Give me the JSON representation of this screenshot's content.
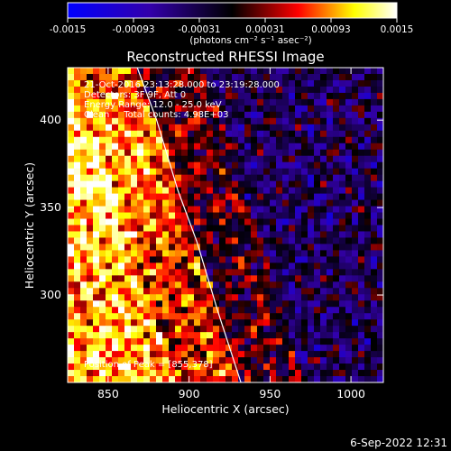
{
  "chart_data": {
    "type": "heatmap",
    "title": "Reconstructed RHESSI Image",
    "xlabel": "Heliocentric X (arcsec)",
    "ylabel": "Heliocentric Y (arcsec)",
    "x_range": [
      825,
      1020
    ],
    "y_range": [
      250,
      430
    ],
    "x_ticks": [
      850,
      900,
      950,
      1000
    ],
    "y_ticks": [
      300,
      350,
      400
    ],
    "colorbar": {
      "min": -0.0015,
      "max": 0.0015,
      "ticks": [
        "-0.0015",
        "-0.00093",
        "-0.00031",
        "0.00031",
        "0.00093",
        "0.0015"
      ],
      "unit_label": "(photons cm⁻² s⁻¹ asec⁻²)",
      "colormap": [
        "#0000ff",
        "#000000",
        "#ff0000",
        "#ffff00",
        "#ffffff"
      ]
    },
    "annotations": [
      "21-Oct-2016 23:13:28.000 to 23:19:28.000",
      "Detectors: 3F 9F, Att 0",
      "Energy Range: 12.0 - 25.0 keV",
      "Clean     Total counts: 4.98E+03"
    ],
    "peak_label": "Position of Peak = [855,378]",
    "peak": {
      "x": 855,
      "y": 378
    },
    "limb_curve": [
      [
        868,
        430
      ],
      [
        880,
        400
      ],
      [
        893,
        360
      ],
      [
        905,
        330
      ],
      [
        918,
        290
      ],
      [
        932,
        250
      ]
    ],
    "grid": false
  },
  "footer": {
    "timestamp": "6-Sep-2022 12:31"
  }
}
